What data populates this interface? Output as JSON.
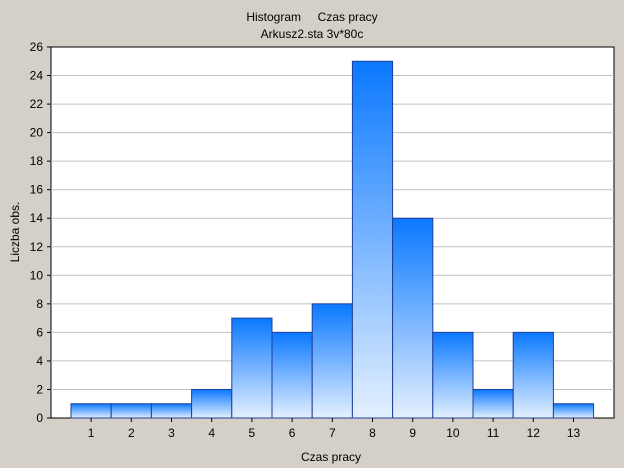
{
  "chart_data": {
    "type": "bar",
    "title": "Histogram     Czas pracy",
    "subtitle": "Arkusz2.sta 3v*80c",
    "xlabel": "Czas pracy",
    "ylabel": "Liczba obs.",
    "categories": [
      "1",
      "2",
      "3",
      "4",
      "5",
      "6",
      "7",
      "8",
      "9",
      "10",
      "11",
      "12",
      "13"
    ],
    "values": [
      1,
      1,
      1,
      2,
      7,
      6,
      8,
      25,
      14,
      6,
      2,
      6,
      1
    ],
    "ylim": [
      0,
      26
    ],
    "yticks": [
      "0",
      "2",
      "4",
      "6",
      "8",
      "10",
      "12",
      "14",
      "16",
      "18",
      "20",
      "22",
      "24",
      "26"
    ],
    "grid": true,
    "colors": {
      "background": "#d4d0c8",
      "plot_bg": "#ffffff",
      "bar_top": "#0a78ff",
      "bar_bottom": "#e4f0ff",
      "bar_edge": "#1f3f9a",
      "grid": "#c0c0c0"
    }
  }
}
